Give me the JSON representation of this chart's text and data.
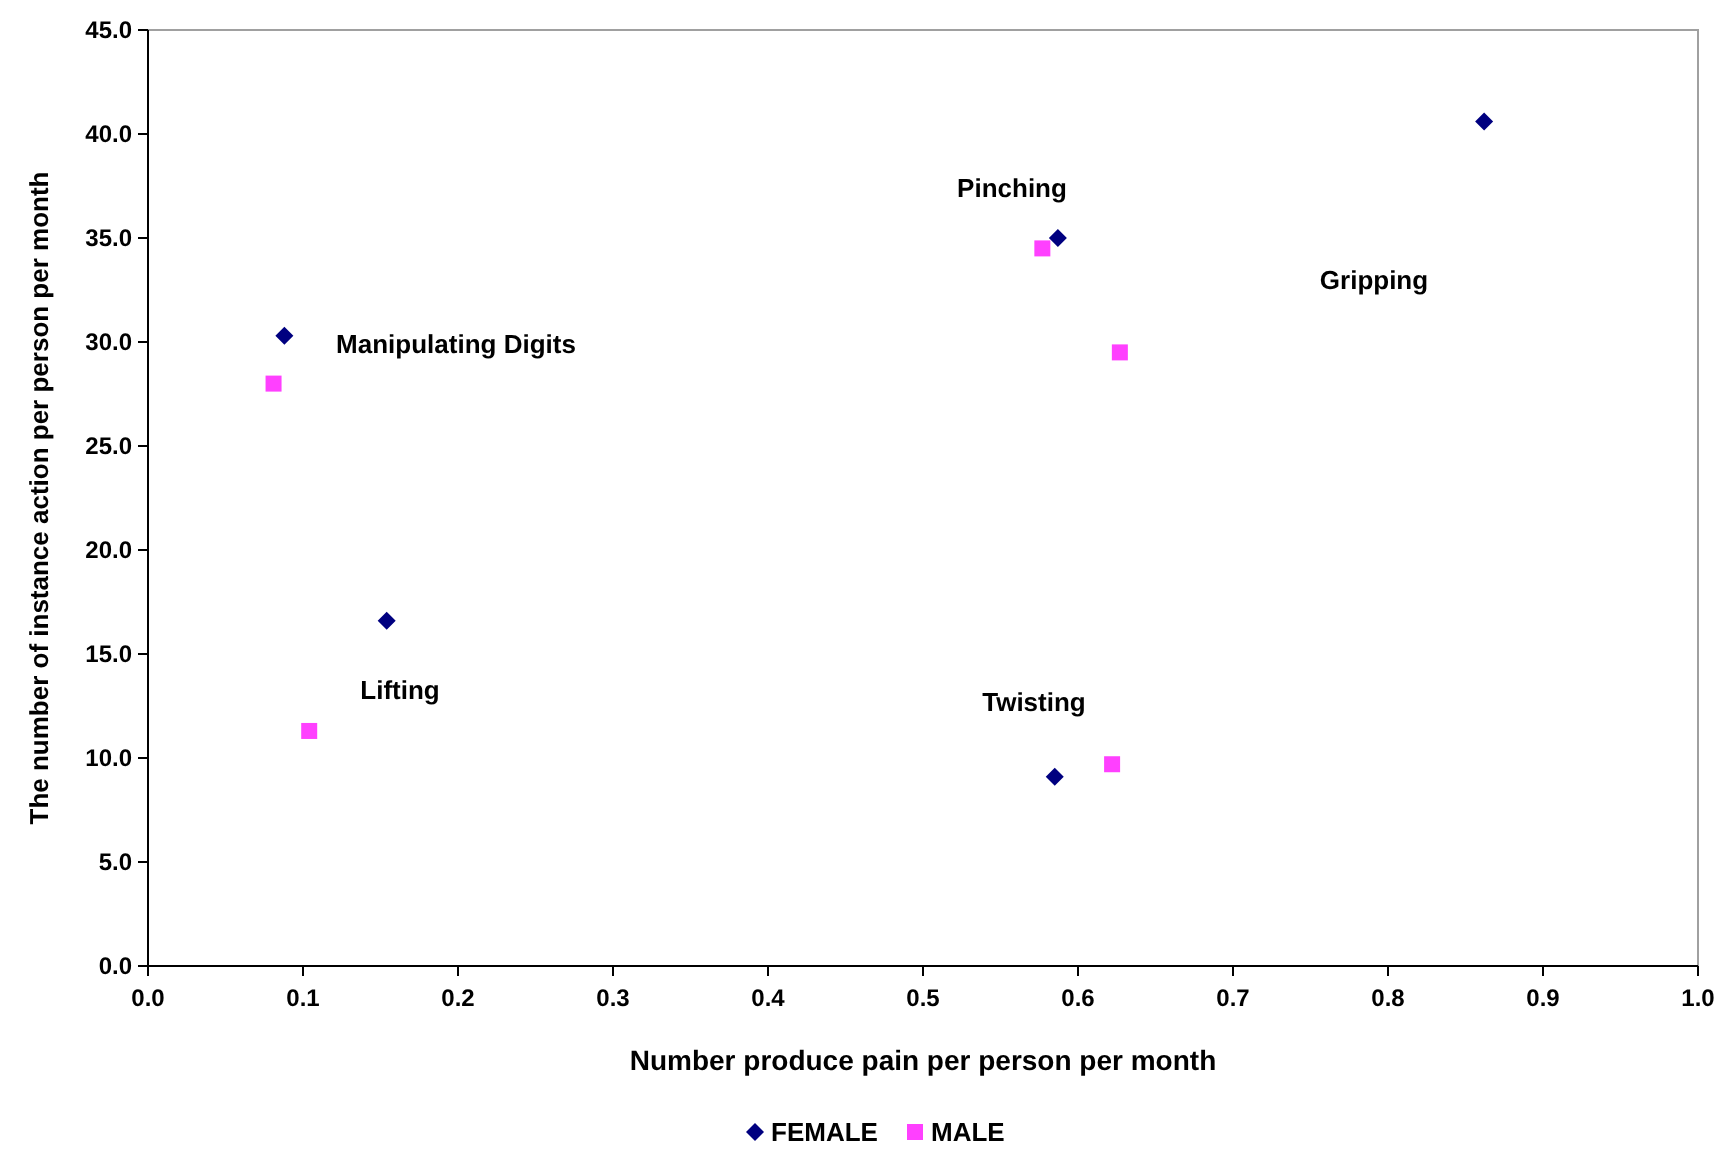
{
  "chart_data": {
    "type": "scatter",
    "xlabel": "Number produce pain per person per month",
    "ylabel": "The number of instance action per person per month",
    "series": [
      {
        "name": "FEMALE",
        "color": "#000080",
        "marker": "diamond",
        "x": [
          0.088,
          0.154,
          0.862,
          0.587,
          0.585
        ],
        "values": [
          30.3,
          16.6,
          40.6,
          35.0,
          9.1
        ]
      },
      {
        "name": "MALE",
        "color": "#ff40ff",
        "marker": "square",
        "x": [
          0.081,
          0.104,
          0.577,
          0.627,
          0.622
        ],
        "values": [
          28.0,
          11.3,
          34.5,
          29.5,
          9.7
        ]
      }
    ],
    "xlim": [
      0,
      1
    ],
    "ylim": [
      0,
      45
    ],
    "xticks": [
      {
        "value": 0,
        "label": "0.0"
      },
      0.1,
      0.2,
      0.3,
      0.4,
      0.5,
      0.6,
      0.7,
      0.8,
      0.9,
      {
        "value": 1,
        "label": "1.0"
      }
    ],
    "yticks": [
      {
        "value": 0,
        "label": "0.0"
      },
      {
        "value": 5,
        "label": "5.0"
      },
      {
        "value": 10,
        "label": "10.0"
      },
      {
        "value": 15,
        "label": "15.0"
      },
      {
        "value": 20,
        "label": "20.0"
      },
      {
        "value": 25,
        "label": "25.0"
      },
      {
        "value": 30,
        "label": "30.0"
      },
      {
        "value": 35,
        "label": "35.0"
      },
      {
        "value": 40,
        "label": "40.0"
      },
      {
        "value": 45,
        "label": "45.0"
      }
    ],
    "annotations": [
      "Manipulating Digits",
      "Pinching",
      "Gripping",
      "Lifting",
      "Twisting"
    ],
    "grid": false,
    "legend": "bottom"
  }
}
